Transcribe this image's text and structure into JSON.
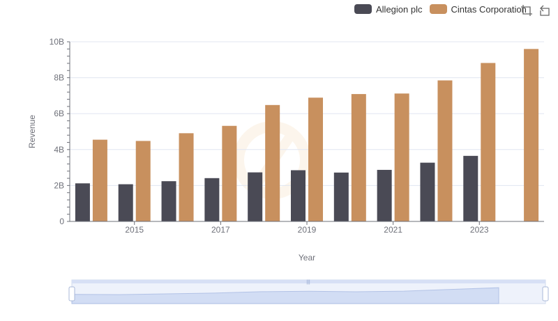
{
  "chart_data": {
    "type": "bar",
    "xlabel": "Year",
    "ylabel": "Revenue",
    "categories": [
      "2014",
      "2015",
      "2016",
      "2017",
      "2018",
      "2019",
      "2020",
      "2021",
      "2022",
      "2023",
      "2024"
    ],
    "x_tick_labels": [
      "2015",
      "2017",
      "2019",
      "2021",
      "2023"
    ],
    "y_tick_labels": [
      "0",
      "2B",
      "4B",
      "6B",
      "8B",
      "10B"
    ],
    "ylim": [
      0,
      10
    ],
    "y_unit": "billions",
    "grid": true,
    "legend_position": "top-right",
    "series": [
      {
        "name": "Allegion plc",
        "color": "#4a4a55",
        "values": [
          2.12,
          2.07,
          2.24,
          2.41,
          2.73,
          2.85,
          2.72,
          2.87,
          3.27,
          3.65,
          null
        ]
      },
      {
        "name": "Cintas Corporation",
        "color": "#c8905e",
        "values": [
          4.55,
          4.48,
          4.91,
          5.32,
          6.48,
          6.89,
          7.09,
          7.12,
          7.85,
          8.82,
          9.6
        ]
      }
    ]
  },
  "toolbox": {
    "icons": [
      "zoom-icon",
      "restore-icon"
    ]
  }
}
